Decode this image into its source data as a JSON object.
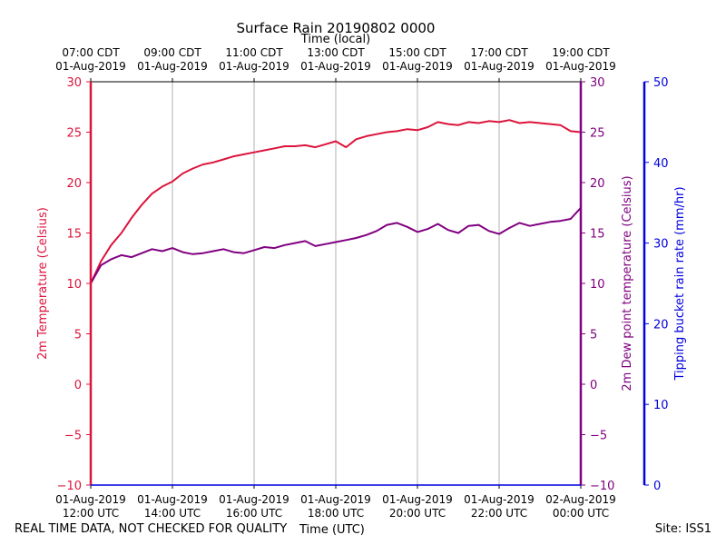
{
  "header": {
    "title": "Surface Rain 20190802 0000"
  },
  "footer": {
    "quality_note": "REAL TIME DATA, NOT CHECKED FOR QUALITY",
    "site": "Site: ISS1"
  },
  "colors": {
    "temperature": "#dc143c",
    "dewpoint": "#800080",
    "rain": "#0000e0",
    "grid": "#b0b0b0"
  },
  "chart_data": {
    "type": "line",
    "title": "Surface Rain 20190802 0000",
    "xlabel_bottom": "Time (UTC)",
    "xlabel_top": "Time (local)",
    "x_unit": "hours since 01-Aug-2019 12:00 UTC",
    "xlim": [
      0,
      12
    ],
    "bottom_ticks": [
      {
        "x": 0,
        "line1": "01-Aug-2019",
        "line2": "12:00 UTC"
      },
      {
        "x": 2,
        "line1": "01-Aug-2019",
        "line2": "14:00 UTC"
      },
      {
        "x": 4,
        "line1": "01-Aug-2019",
        "line2": "16:00 UTC"
      },
      {
        "x": 6,
        "line1": "01-Aug-2019",
        "line2": "18:00 UTC"
      },
      {
        "x": 8,
        "line1": "01-Aug-2019",
        "line2": "20:00 UTC"
      },
      {
        "x": 10,
        "line1": "01-Aug-2019",
        "line2": "22:00 UTC"
      },
      {
        "x": 12,
        "line1": "02-Aug-2019",
        "line2": "00:00 UTC"
      }
    ],
    "top_ticks": [
      {
        "x": 0,
        "line1": "07:00 CDT",
        "line2": "01-Aug-2019"
      },
      {
        "x": 2,
        "line1": "09:00 CDT",
        "line2": "01-Aug-2019"
      },
      {
        "x": 4,
        "line1": "11:00 CDT",
        "line2": "01-Aug-2019"
      },
      {
        "x": 6,
        "line1": "13:00 CDT",
        "line2": "01-Aug-2019"
      },
      {
        "x": 8,
        "line1": "15:00 CDT",
        "line2": "01-Aug-2019"
      },
      {
        "x": 10,
        "line1": "17:00 CDT",
        "line2": "01-Aug-2019"
      },
      {
        "x": 12,
        "line1": "19:00 CDT",
        "line2": "01-Aug-2019"
      }
    ],
    "y_left": {
      "label": "2m Temperature (Celsius)",
      "ylim": [
        -10,
        30
      ],
      "ticks": [
        -10,
        -5,
        0,
        5,
        10,
        15,
        20,
        25,
        30
      ]
    },
    "y_right1": {
      "label": "2m Dew point temperature (Celsius)",
      "ylim": [
        -10,
        30
      ],
      "ticks": [
        -10,
        -5,
        0,
        5,
        10,
        15,
        20,
        25,
        30
      ]
    },
    "y_right2": {
      "label": "Tipping bucket rain rate (mm/hr)",
      "ylim": [
        0,
        50
      ],
      "ticks": [
        0,
        10,
        20,
        30,
        40,
        50
      ]
    },
    "series": [
      {
        "name": "2m Temperature",
        "axis": "y_left",
        "x": [
          0,
          0.25,
          0.5,
          0.75,
          1.0,
          1.25,
          1.5,
          1.75,
          2.0,
          2.25,
          2.5,
          2.75,
          3.0,
          3.25,
          3.5,
          3.75,
          4.0,
          4.25,
          4.5,
          4.75,
          5.0,
          5.25,
          5.5,
          5.75,
          6.0,
          6.25,
          6.5,
          6.75,
          7.0,
          7.25,
          7.5,
          7.75,
          8.0,
          8.25,
          8.5,
          8.75,
          9.0,
          9.25,
          9.5,
          9.75,
          10.0,
          10.25,
          10.5,
          10.75,
          11.0,
          11.25,
          11.5,
          11.75,
          12.0
        ],
        "values": [
          10.0,
          12.2,
          13.8,
          15.0,
          16.5,
          17.8,
          18.9,
          19.6,
          20.1,
          20.9,
          21.4,
          21.8,
          22.0,
          22.3,
          22.6,
          22.8,
          23.0,
          23.2,
          23.4,
          23.6,
          23.6,
          23.7,
          23.5,
          23.8,
          24.1,
          23.5,
          24.3,
          24.6,
          24.8,
          25.0,
          25.1,
          25.3,
          25.2,
          25.5,
          26.0,
          25.8,
          25.7,
          26.0,
          25.9,
          26.1,
          26.0,
          26.2,
          25.9,
          26.0,
          25.9,
          25.8,
          25.7,
          25.1,
          25.0
        ]
      },
      {
        "name": "2m Dew point temperature",
        "axis": "y_right1",
        "x": [
          0,
          0.25,
          0.5,
          0.75,
          1.0,
          1.25,
          1.5,
          1.75,
          2.0,
          2.25,
          2.5,
          2.75,
          3.0,
          3.25,
          3.5,
          3.75,
          4.0,
          4.25,
          4.5,
          4.75,
          5.0,
          5.25,
          5.5,
          5.75,
          6.0,
          6.25,
          6.5,
          6.75,
          7.0,
          7.25,
          7.5,
          7.75,
          8.0,
          8.25,
          8.5,
          8.75,
          9.0,
          9.25,
          9.5,
          9.75,
          10.0,
          10.25,
          10.5,
          10.75,
          11.0,
          11.25,
          11.5,
          11.75,
          12.0
        ],
        "values": [
          10.0,
          11.8,
          12.4,
          12.8,
          12.6,
          13.0,
          13.4,
          13.2,
          13.5,
          13.1,
          12.9,
          13.0,
          13.2,
          13.4,
          13.1,
          13.0,
          13.3,
          13.6,
          13.5,
          13.8,
          14.0,
          14.2,
          13.7,
          13.9,
          14.1,
          14.3,
          14.5,
          14.8,
          15.2,
          15.8,
          16.0,
          15.6,
          15.1,
          15.4,
          15.9,
          15.3,
          15.0,
          15.7,
          15.8,
          15.2,
          14.9,
          15.5,
          16.0,
          15.7,
          15.9,
          16.1,
          16.2,
          16.4,
          17.5
        ]
      }
    ]
  }
}
